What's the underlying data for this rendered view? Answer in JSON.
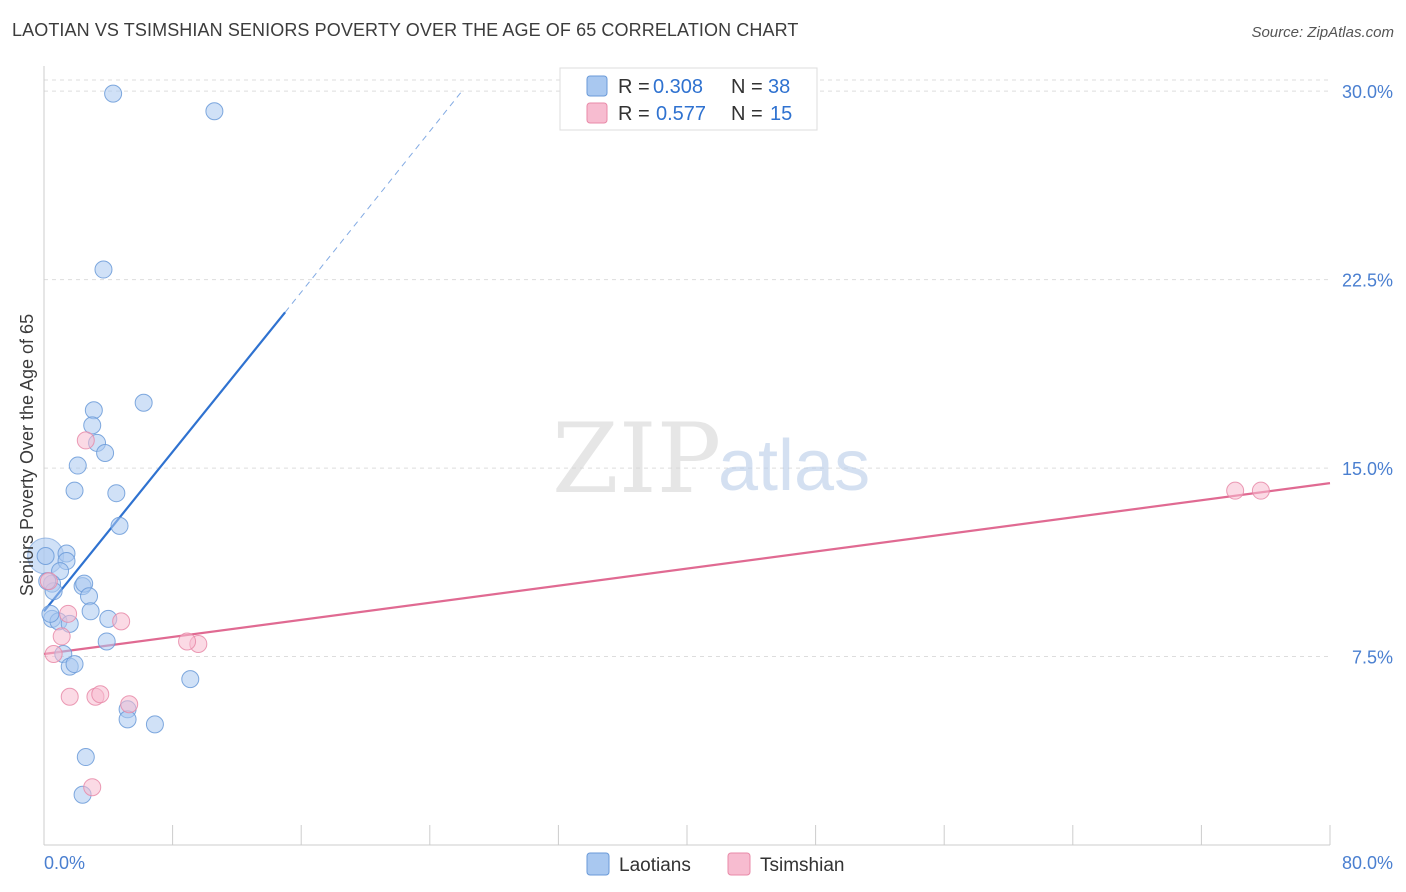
{
  "header": {
    "title": "LAOTIAN VS TSIMSHIAN SENIORS POVERTY OVER THE AGE OF 65 CORRELATION CHART",
    "source": "Source: ZipAtlas.com"
  },
  "watermark": {
    "zip": "ZIP",
    "atlas": "atlas"
  },
  "colors": {
    "laotians_fill": "#a9c8f0",
    "laotians_stroke": "#6a9ad8",
    "laotians_line": "#2f72d0",
    "tsimshian_fill": "#f7bcd0",
    "tsimshian_stroke": "#e88aa8",
    "tsimshian_line": "#e06a92",
    "grid": "#dddddd",
    "axis_label": "#4a7fd0"
  },
  "legend": {
    "rows": [
      {
        "r_label": "R =",
        "r_value": "0.308",
        "n_label": "N =",
        "n_value": "38"
      },
      {
        "r_label": "R =",
        "r_value": "0.577",
        "n_label": "N =",
        "n_value": "15"
      }
    ]
  },
  "bottom_legend": {
    "laotians": "Laotians",
    "tsimshian": "Tsimshian"
  },
  "chart_data": {
    "type": "scatter",
    "title": "LAOTIAN VS TSIMSHIAN SENIORS POVERTY OVER THE AGE OF 65 CORRELATION CHART",
    "xlabel": "",
    "ylabel": "Seniors Poverty Over the Age of 65",
    "xlim": [
      0,
      80
    ],
    "ylim": [
      0,
      31
    ],
    "x_tick_labels": [
      "0.0%",
      "80.0%"
    ],
    "y_ticks": [
      7.5,
      15.0,
      22.5,
      30.0
    ],
    "y_tick_labels": [
      "7.5%",
      "15.0%",
      "22.5%",
      "30.0%"
    ],
    "grid": true,
    "series": [
      {
        "name": "Laotians",
        "r": 0.308,
        "n": 38,
        "points": [
          [
            4.3,
            29.9
          ],
          [
            10.6,
            29.2
          ],
          [
            3.7,
            22.9
          ],
          [
            6.2,
            17.6
          ],
          [
            3.1,
            17.3
          ],
          [
            3.0,
            16.7
          ],
          [
            3.3,
            16.0
          ],
          [
            3.8,
            15.6
          ],
          [
            2.1,
            15.1
          ],
          [
            1.9,
            14.1
          ],
          [
            4.5,
            14.0
          ],
          [
            4.7,
            12.7
          ],
          [
            0.1,
            11.5
          ],
          [
            1.4,
            11.6
          ],
          [
            1.4,
            11.3
          ],
          [
            1.0,
            10.9
          ],
          [
            0.5,
            10.4
          ],
          [
            0.6,
            10.1
          ],
          [
            2.4,
            10.3
          ],
          [
            2.5,
            10.4
          ],
          [
            2.8,
            9.9
          ],
          [
            2.9,
            9.3
          ],
          [
            0.5,
            9.0
          ],
          [
            0.9,
            8.9
          ],
          [
            1.6,
            8.8
          ],
          [
            4.0,
            9.0
          ],
          [
            3.9,
            8.1
          ],
          [
            1.2,
            7.6
          ],
          [
            1.6,
            7.1
          ],
          [
            1.9,
            7.2
          ],
          [
            9.1,
            6.6
          ],
          [
            5.2,
            5.4
          ],
          [
            5.2,
            5.0
          ],
          [
            6.9,
            4.8
          ],
          [
            2.6,
            3.5
          ],
          [
            2.4,
            2.0
          ],
          [
            0.2,
            10.5
          ],
          [
            0.4,
            9.2
          ]
        ],
        "trend": {
          "x0": 0,
          "y0": 9.3,
          "x1": 15.0,
          "y1": 21.2,
          "dashed_to_x": 26.0,
          "dashed_to_y": 30.0
        }
      },
      {
        "name": "Tsimshian",
        "r": 0.577,
        "n": 15,
        "points": [
          [
            0.3,
            10.5
          ],
          [
            2.6,
            16.1
          ],
          [
            1.5,
            9.2
          ],
          [
            1.1,
            8.3
          ],
          [
            4.8,
            8.9
          ],
          [
            0.6,
            7.6
          ],
          [
            9.6,
            8.0
          ],
          [
            8.9,
            8.1
          ],
          [
            1.6,
            5.9
          ],
          [
            3.2,
            5.9
          ],
          [
            3.5,
            6.0
          ],
          [
            5.3,
            5.6
          ],
          [
            3.0,
            2.3
          ],
          [
            74.1,
            14.1
          ],
          [
            75.7,
            14.1
          ]
        ],
        "trend": {
          "x0": 0,
          "y0": 7.6,
          "x1": 80,
          "y1": 14.4
        }
      }
    ]
  }
}
